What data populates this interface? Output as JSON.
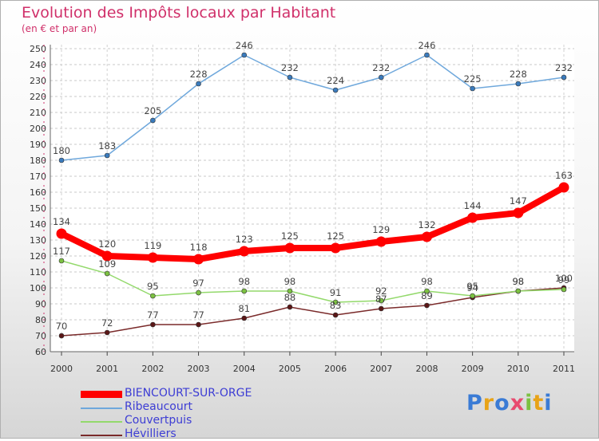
{
  "title": "Evolution des Impôts locaux par Habitant",
  "subtitle": "(en € et par an)",
  "logo_text": "Proxiti",
  "chart_data": {
    "type": "line",
    "title": "Evolution des Impôts locaux par Habitant",
    "subtitle": "(en € et par an)",
    "xlabel": "",
    "ylabel": "",
    "x": [
      "2000",
      "2001",
      "2002",
      "2003",
      "2004",
      "2005",
      "2006",
      "2007",
      "2008",
      "2009",
      "2010",
      "2011"
    ],
    "ylim": [
      60,
      250
    ],
    "yticks": [
      60,
      70,
      80,
      90,
      100,
      110,
      120,
      130,
      140,
      150,
      160,
      170,
      180,
      190,
      200,
      210,
      220,
      230,
      240,
      250
    ],
    "grid": "horizontal-dashed",
    "legend_position": "bottom-left",
    "series": [
      {
        "name": "BIENCOURT-SUR-ORGE",
        "color": "#ff0000",
        "values": [
          134,
          120,
          119,
          118,
          123,
          125,
          125,
          129,
          132,
          144,
          147,
          163
        ]
      },
      {
        "name": "Ribeaucourt",
        "color": "#6fa8dc",
        "values": [
          180,
          183,
          205,
          228,
          246,
          232,
          224,
          232,
          246,
          225,
          228,
          232
        ]
      },
      {
        "name": "Couvertpuis",
        "color": "#93d96b",
        "values": [
          117,
          109,
          95,
          97,
          98,
          98,
          91,
          92,
          98,
          95,
          98,
          99
        ]
      },
      {
        "name": "Hévilliers",
        "color": "#7a2a2a",
        "values": [
          70,
          72,
          77,
          77,
          81,
          88,
          83,
          87,
          89,
          94,
          98,
          100
        ]
      }
    ]
  }
}
